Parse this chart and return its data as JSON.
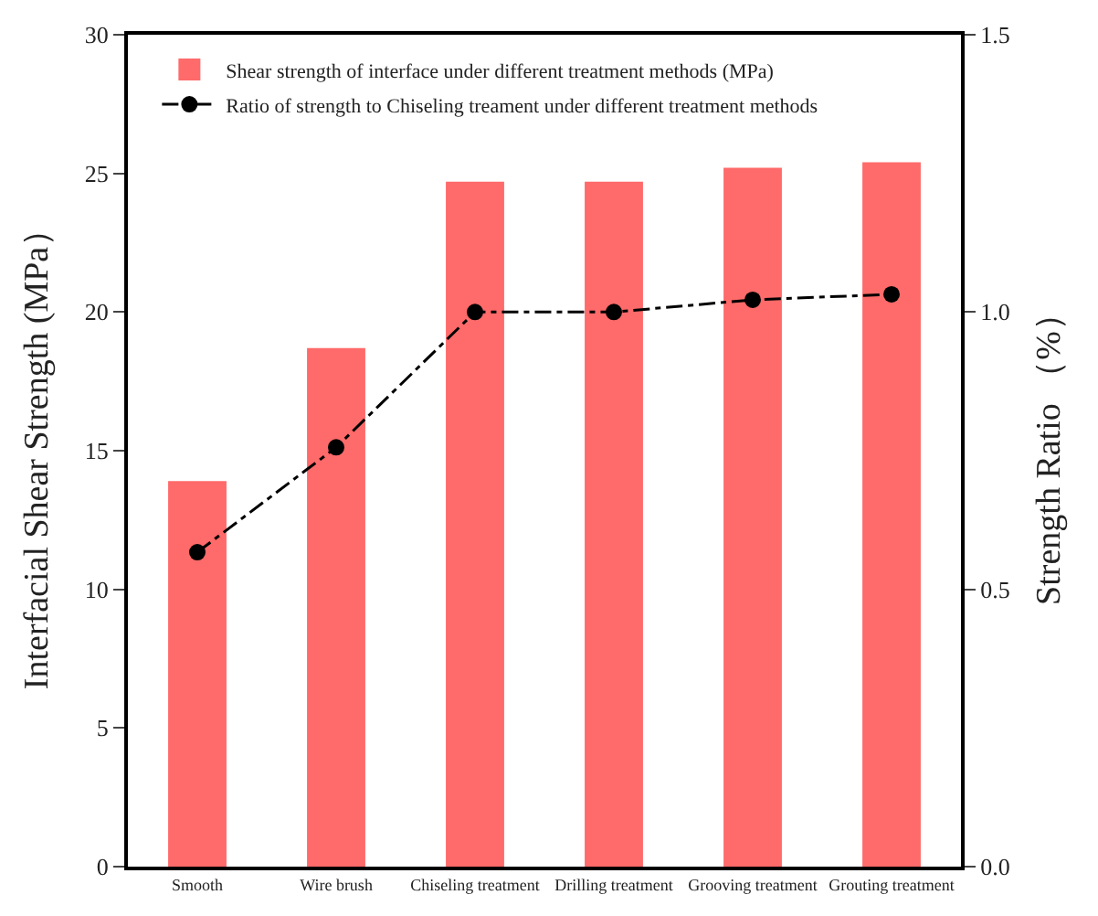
{
  "chart_data": {
    "type": "bar",
    "categories": [
      "Smooth",
      "Wire brush",
      "Chiseling treatment",
      "Drilling treatment",
      "Grooving treatment",
      "Grouting treatment"
    ],
    "ylabel": "Interfacial Shear Strength (MPa）",
    "y2label": "Strength Ratio （%）",
    "series": [
      {
        "name": "Shear strength of interface under different treatment methods (MPa)",
        "color": "#ff6a6a",
        "values": [
          13.9,
          18.7,
          24.7,
          24.7,
          25.2,
          25.4
        ]
      },
      {
        "name": "Ratio of strength to Chiseling treament under different treatment methods",
        "type": "line",
        "axis": "y2",
        "color": "#000000",
        "marker": "circle",
        "line_style": "dashdot",
        "values": [
          0.567,
          0.756,
          1.0,
          1.0,
          1.022,
          1.032
        ]
      }
    ],
    "ylim": [
      0,
      30
    ],
    "yticks": [
      0,
      5,
      10,
      15,
      20,
      25,
      30
    ],
    "y2lim": [
      0,
      1.5
    ],
    "y2ticks": [
      {
        "value": 0,
        "label": "0.0"
      },
      {
        "value": 0.5,
        "label": "0.5"
      },
      {
        "value": 1,
        "label": "1.0"
      },
      {
        "value": 1.5,
        "label": "1.5"
      }
    ],
    "legend": "top left"
  }
}
